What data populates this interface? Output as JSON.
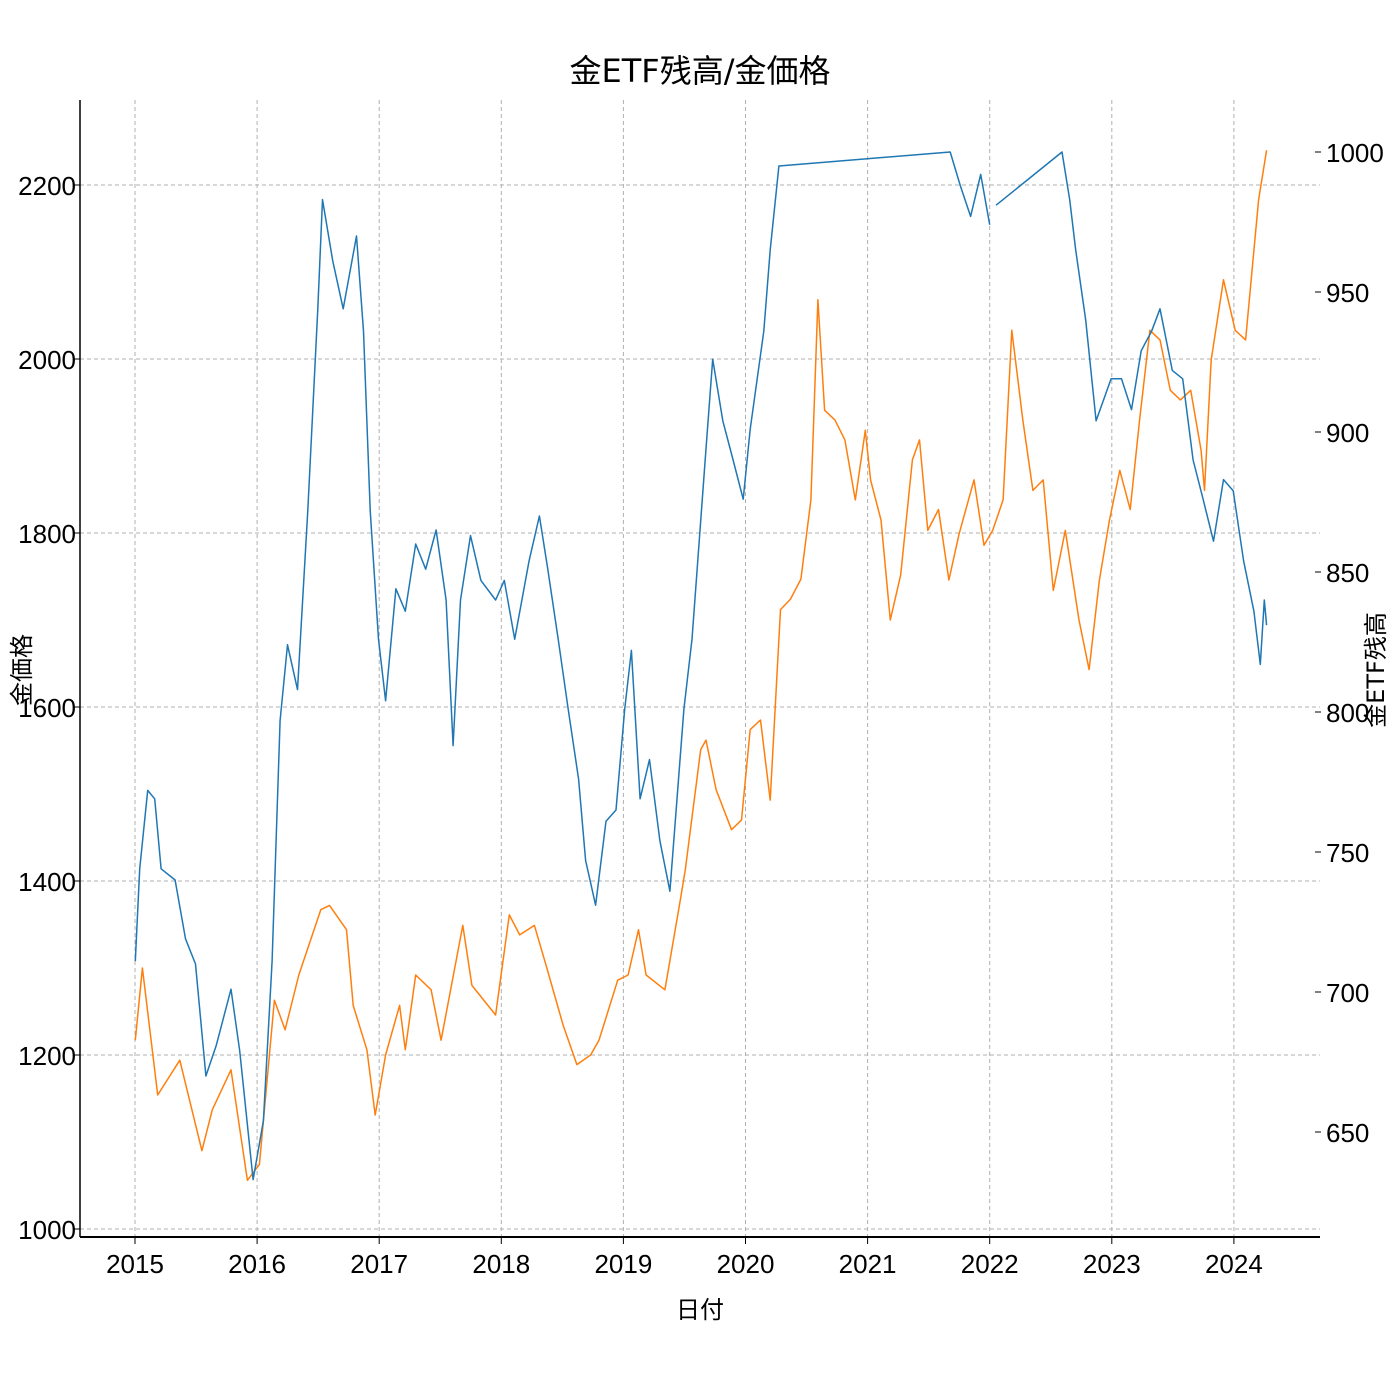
{
  "chart_data": {
    "type": "line",
    "title": "金ETF残高/金価格",
    "xlabel": "日付",
    "ylabel_left": "金価格",
    "ylabel_right": "金ETF残高",
    "xlim": [
      "2014-07-25",
      "2024-09-20"
    ],
    "ylim_left": [
      990,
      2300
    ],
    "ylim_right": [
      610,
      1030
    ],
    "x_ticks": [
      "2015",
      "2016",
      "2017",
      "2018",
      "2019",
      "2020",
      "2021",
      "2022",
      "2023",
      "2024"
    ],
    "y_ticks_left": [
      1000,
      1200,
      1400,
      1600,
      1800,
      2000,
      2200
    ],
    "y_ticks_right": [
      650,
      700,
      750,
      800,
      850,
      900,
      950,
      1000
    ],
    "grid": true,
    "series": [
      {
        "axis": "right",
        "color": "#1f77b4",
        "points": [
          [
            "2015-01-02",
            711
          ],
          [
            "2015-01-15",
            744
          ],
          [
            "2015-02-08",
            772
          ],
          [
            "2015-03-01",
            769
          ],
          [
            "2015-03-20",
            744
          ],
          [
            "2015-05-01",
            740
          ],
          [
            "2015-06-01",
            719
          ],
          [
            "2015-07-01",
            710
          ],
          [
            "2015-08-01",
            670
          ],
          [
            "2015-09-01",
            681
          ],
          [
            "2015-10-15",
            701
          ],
          [
            "2015-11-10",
            679
          ],
          [
            "2015-12-20",
            633
          ],
          [
            "2016-01-20",
            654
          ],
          [
            "2016-02-15",
            711
          ],
          [
            "2016-03-10",
            797
          ],
          [
            "2016-04-01",
            824
          ],
          [
            "2016-05-01",
            808
          ],
          [
            "2016-06-01",
            872
          ],
          [
            "2016-07-01",
            944
          ],
          [
            "2016-07-15",
            983
          ],
          [
            "2016-08-15",
            961
          ],
          [
            "2016-09-15",
            944
          ],
          [
            "2016-10-25",
            970
          ],
          [
            "2016-11-15",
            936
          ],
          [
            "2016-12-05",
            872
          ],
          [
            "2016-12-30",
            826
          ],
          [
            "2017-01-20",
            804
          ],
          [
            "2017-02-20",
            844
          ],
          [
            "2017-03-20",
            836
          ],
          [
            "2017-04-20",
            860
          ],
          [
            "2017-05-20",
            851
          ],
          [
            "2017-06-20",
            865
          ],
          [
            "2017-07-20",
            840
          ],
          [
            "2017-08-10",
            788
          ],
          [
            "2017-09-01",
            840
          ],
          [
            "2017-10-01",
            863
          ],
          [
            "2017-11-01",
            847
          ],
          [
            "2017-12-15",
            840
          ],
          [
            "2018-01-10",
            847
          ],
          [
            "2018-02-10",
            826
          ],
          [
            "2018-03-25",
            854
          ],
          [
            "2018-04-25",
            870
          ],
          [
            "2018-05-20",
            851
          ],
          [
            "2018-06-20",
            826
          ],
          [
            "2018-07-20",
            801
          ],
          [
            "2018-08-20",
            776
          ],
          [
            "2018-09-10",
            747
          ],
          [
            "2018-10-10",
            731
          ],
          [
            "2018-11-10",
            761
          ],
          [
            "2018-12-10",
            765
          ],
          [
            "2019-01-05",
            801
          ],
          [
            "2019-01-25",
            822
          ],
          [
            "2019-02-20",
            769
          ],
          [
            "2019-03-20",
            783
          ],
          [
            "2019-04-20",
            754
          ],
          [
            "2019-05-20",
            736
          ],
          [
            "2019-07-01",
            801
          ],
          [
            "2019-07-25",
            826
          ],
          [
            "2019-09-05",
            894
          ],
          [
            "2019-09-25",
            926
          ],
          [
            "2019-10-25",
            904
          ],
          [
            "2019-11-25",
            890
          ],
          [
            "2019-12-25",
            876
          ],
          [
            "2020-01-15",
            901
          ],
          [
            "2020-02-25",
            936
          ],
          [
            "2020-03-15",
            965
          ],
          [
            "2020-04-10",
            995
          ],
          [
            "2021-09-05",
            1000
          ],
          [
            "2021-10-05",
            988
          ],
          [
            "2021-11-05",
            977
          ],
          [
            "2021-12-05",
            992
          ],
          [
            "2022-01-01",
            974
          ],
          null,
          [
            "2022-01-20",
            981
          ],
          [
            "2022-08-05",
            1000
          ],
          [
            "2022-08-28",
            983
          ],
          [
            "2022-09-15",
            965
          ],
          [
            "2022-10-15",
            940
          ],
          [
            "2022-11-15",
            904
          ],
          [
            "2022-12-30",
            919
          ],
          [
            "2023-01-30",
            919
          ],
          [
            "2023-03-01",
            908
          ],
          [
            "2023-03-30",
            929
          ],
          [
            "2023-04-30",
            936
          ],
          [
            "2023-05-25",
            944
          ],
          [
            "2023-07-01",
            922
          ],
          [
            "2023-08-01",
            919
          ],
          [
            "2023-09-01",
            890
          ],
          [
            "2023-10-01",
            876
          ],
          [
            "2023-11-01",
            861
          ],
          [
            "2023-12-01",
            883
          ],
          [
            "2023-12-30",
            879
          ],
          [
            "2024-01-30",
            854
          ],
          [
            "2024-03-01",
            836
          ],
          [
            "2024-03-20",
            817
          ],
          [
            "2024-04-01",
            840
          ],
          [
            "2024-04-08",
            831
          ]
        ]
      },
      {
        "axis": "left",
        "color": "#ff7f0e",
        "points": [
          [
            "2015-01-02",
            1217
          ],
          [
            "2015-01-23",
            1300
          ],
          [
            "2015-03-10",
            1154
          ],
          [
            "2015-05-15",
            1194
          ],
          [
            "2015-07-20",
            1090
          ],
          [
            "2015-08-20",
            1137
          ],
          [
            "2015-10-15",
            1183
          ],
          [
            "2015-12-03",
            1056
          ],
          [
            "2016-01-08",
            1074
          ],
          [
            "2016-02-22",
            1263
          ],
          [
            "2016-03-25",
            1229
          ],
          [
            "2016-05-05",
            1292
          ],
          [
            "2016-07-10",
            1367
          ],
          [
            "2016-08-05",
            1372
          ],
          [
            "2016-09-25",
            1344
          ],
          [
            "2016-10-15",
            1257
          ],
          [
            "2016-11-25",
            1206
          ],
          [
            "2016-12-20",
            1131
          ],
          [
            "2017-01-20",
            1200
          ],
          [
            "2017-03-03",
            1257
          ],
          [
            "2017-03-20",
            1206
          ],
          [
            "2017-04-20",
            1292
          ],
          [
            "2017-06-05",
            1275
          ],
          [
            "2017-07-05",
            1217
          ],
          [
            "2017-09-08",
            1349
          ],
          [
            "2017-10-05",
            1280
          ],
          [
            "2017-12-15",
            1246
          ],
          [
            "2018-01-25",
            1361
          ],
          [
            "2018-02-25",
            1338
          ],
          [
            "2018-04-10",
            1349
          ],
          [
            "2018-05-15",
            1303
          ],
          [
            "2018-07-05",
            1234
          ],
          [
            "2018-08-15",
            1189
          ],
          [
            "2018-09-25",
            1200
          ],
          [
            "2018-10-20",
            1217
          ],
          [
            "2018-12-15",
            1286
          ],
          [
            "2019-01-15",
            1292
          ],
          [
            "2019-02-15",
            1344
          ],
          [
            "2019-03-10",
            1292
          ],
          [
            "2019-05-05",
            1275
          ],
          [
            "2019-06-20",
            1378
          ],
          [
            "2019-07-05",
            1413
          ],
          [
            "2019-08-20",
            1551
          ],
          [
            "2019-09-05",
            1562
          ],
          [
            "2019-10-05",
            1505
          ],
          [
            "2019-11-20",
            1459
          ],
          [
            "2019-12-20",
            1470
          ],
          [
            "2020-01-15",
            1574
          ],
          [
            "2020-02-15",
            1585
          ],
          [
            "2020-03-15",
            1493
          ],
          [
            "2020-04-15",
            1712
          ],
          [
            "2020-05-15",
            1724
          ],
          [
            "2020-06-15",
            1747
          ],
          [
            "2020-07-15",
            1838
          ],
          [
            "2020-08-05",
            2068
          ],
          [
            "2020-08-25",
            1941
          ],
          [
            "2020-09-25",
            1930
          ],
          [
            "2020-10-25",
            1907
          ],
          [
            "2020-11-25",
            1838
          ],
          [
            "2020-12-25",
            1918
          ],
          [
            "2021-01-10",
            1861
          ],
          [
            "2021-02-10",
            1815
          ],
          [
            "2021-03-10",
            1700
          ],
          [
            "2021-04-10",
            1752
          ],
          [
            "2021-05-15",
            1884
          ],
          [
            "2021-06-05",
            1907
          ],
          [
            "2021-06-30",
            1803
          ],
          [
            "2021-08-01",
            1827
          ],
          [
            "2021-09-01",
            1746
          ],
          [
            "2021-10-01",
            1798
          ],
          [
            "2021-11-15",
            1861
          ],
          [
            "2021-12-15",
            1786
          ],
          [
            "2022-01-10",
            1803
          ],
          [
            "2022-02-10",
            1838
          ],
          [
            "2022-03-08",
            2033
          ],
          [
            "2022-04-10",
            1930
          ],
          [
            "2022-05-10",
            1849
          ],
          [
            "2022-06-10",
            1861
          ],
          [
            "2022-07-10",
            1734
          ],
          [
            "2022-08-15",
            1803
          ],
          [
            "2022-09-25",
            1700
          ],
          [
            "2022-10-25",
            1643
          ],
          [
            "2022-11-25",
            1746
          ],
          [
            "2022-12-25",
            1815
          ],
          [
            "2023-01-25",
            1872
          ],
          [
            "2023-02-25",
            1827
          ],
          [
            "2023-03-25",
            1930
          ],
          [
            "2023-04-25",
            2033
          ],
          [
            "2023-05-25",
            2022
          ],
          [
            "2023-06-25",
            1964
          ],
          [
            "2023-07-25",
            1953
          ],
          [
            "2023-08-25",
            1964
          ],
          [
            "2023-09-25",
            1895
          ],
          [
            "2023-10-05",
            1849
          ],
          [
            "2023-10-25",
            1999
          ],
          [
            "2023-12-01",
            2091
          ],
          [
            "2024-01-05",
            2033
          ],
          [
            "2024-02-05",
            2022
          ],
          [
            "2024-03-15",
            2183
          ],
          [
            "2024-04-08",
            2240
          ]
        ]
      }
    ]
  }
}
